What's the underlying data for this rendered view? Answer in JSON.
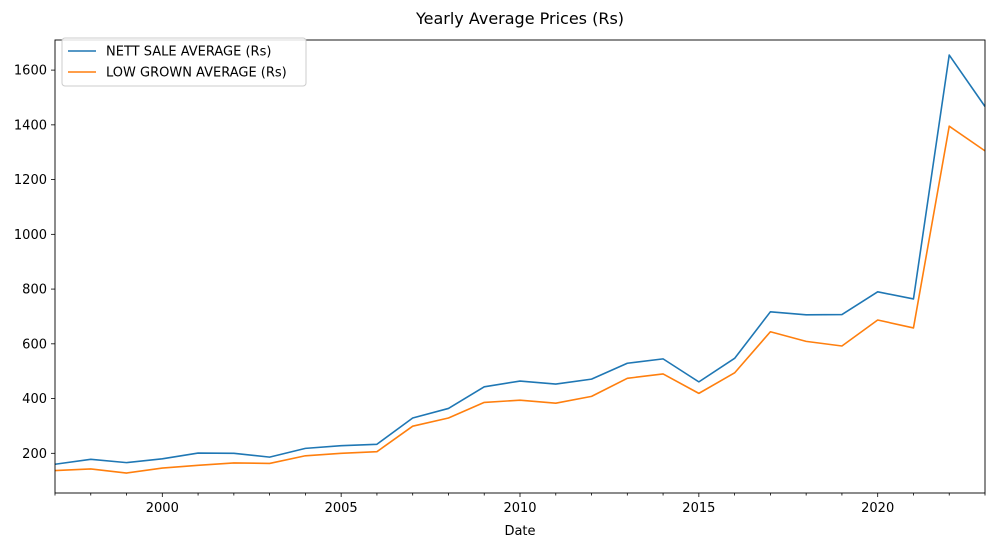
{
  "chart_data": {
    "type": "line",
    "title": "Yearly Average Prices (Rs)",
    "xlabel": "Date",
    "ylabel": "",
    "xlim": [
      1997,
      2023
    ],
    "ylim": [
      55,
      1710
    ],
    "x_major_ticks": [
      2000,
      2005,
      2010,
      2015,
      2020
    ],
    "y_ticks": [
      200,
      400,
      600,
      800,
      1000,
      1200,
      1400,
      1600
    ],
    "grid": false,
    "legend_position": "top-left",
    "x": [
      1997,
      1998,
      1999,
      2000,
      2001,
      2002,
      2003,
      2004,
      2005,
      2006,
      2007,
      2008,
      2009,
      2010,
      2011,
      2012,
      2013,
      2014,
      2015,
      2016,
      2017,
      2018,
      2019,
      2020,
      2021,
      2022,
      2023
    ],
    "series": [
      {
        "name": "NETT SALE AVERAGE (Rs)",
        "color": "#1f77b4",
        "values": [
          160,
          178,
          166,
          180,
          201,
          200,
          186,
          218,
          228,
          233,
          329,
          364,
          443,
          464,
          453,
          471,
          529,
          545,
          461,
          547,
          717,
          706,
          707,
          790,
          764,
          1655,
          1467
        ]
      },
      {
        "name": "LOW GROWN AVERAGE (Rs)",
        "color": "#ff7f0e",
        "values": [
          137,
          143,
          128,
          146,
          156,
          165,
          163,
          191,
          200,
          206,
          299,
          329,
          386,
          394,
          383,
          408,
          474,
          490,
          419,
          494,
          644,
          609,
          592,
          687,
          658,
          1395,
          1305
        ]
      }
    ]
  }
}
